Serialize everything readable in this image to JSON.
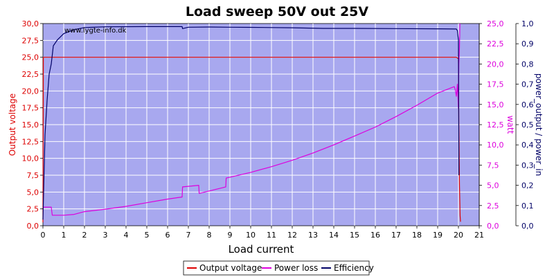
{
  "chart_data": {
    "type": "line",
    "title": "Load sweep 50V out 25V",
    "watermark": "www.lygte-info.dk",
    "xlabel": "Load current",
    "xlim": [
      0,
      21
    ],
    "x_ticks": [
      "0",
      "1",
      "2",
      "3",
      "4",
      "5",
      "6",
      "7",
      "8",
      "9",
      "10",
      "11",
      "12",
      "13",
      "14",
      "15",
      "16",
      "17",
      "18",
      "19",
      "20",
      "21"
    ],
    "y_left": {
      "label": "Output voltage",
      "range": [
        0,
        30
      ],
      "ticks": [
        "0,0",
        "2,5",
        "5,0",
        "7,5",
        "10,0",
        "12,5",
        "15,0",
        "17,5",
        "20,0",
        "22,5",
        "25,0",
        "27,5",
        "30,0"
      ],
      "color": "#dd0000"
    },
    "y_right1": {
      "label": "watt",
      "range": [
        0,
        25
      ],
      "ticks": [
        "0,0",
        "2,5",
        "5,0",
        "7,5",
        "10,0",
        "12,5",
        "15,0",
        "17,5",
        "20,0",
        "22,5",
        "25,0"
      ],
      "color": "#dd00dd"
    },
    "y_right2": {
      "label": "power_output / power_in",
      "range": [
        0,
        1
      ],
      "ticks": [
        "0,0",
        "0,1",
        "0,2",
        "0,3",
        "0,4",
        "0,5",
        "0,6",
        "0,7",
        "0,8",
        "0,9",
        "1,0"
      ],
      "color": "#000066"
    },
    "grid": true,
    "legend_position": "bottom",
    "plot_background": "#a8a8ef",
    "series": [
      {
        "name": "Output voltage",
        "axis": "left",
        "color": "#dd0000",
        "x": [
          0,
          0.02,
          1,
          5,
          10,
          15,
          19.9,
          20.0,
          20.02,
          20.05,
          20.08,
          20.1
        ],
        "y": [
          0.5,
          25.0,
          25.0,
          25.0,
          25.0,
          25.0,
          25.0,
          24.8,
          15.0,
          6.0,
          1.5,
          0.6
        ]
      },
      {
        "name": "Power loss",
        "axis": "right1",
        "color": "#dd00dd",
        "x": [
          0,
          0.05,
          0.4,
          0.45,
          1.0,
          1.5,
          2.0,
          3.0,
          4.0,
          5.0,
          6.0,
          6.7,
          6.72,
          7.5,
          7.52,
          8.0,
          8.8,
          8.82,
          9.0,
          10.0,
          11.0,
          12.0,
          13.0,
          14.0,
          15.0,
          16.0,
          17.0,
          18.0,
          19.0,
          19.8,
          19.85,
          19.9,
          19.95,
          20.0,
          20.02,
          20.05,
          20.07
        ],
        "y": [
          2.3,
          2.3,
          2.3,
          1.3,
          1.3,
          1.4,
          1.75,
          2.05,
          2.4,
          2.85,
          3.3,
          3.55,
          4.8,
          5.0,
          4.0,
          4.3,
          4.8,
          5.9,
          6.0,
          6.6,
          7.3,
          8.1,
          9.0,
          10.0,
          11.1,
          12.2,
          13.5,
          14.9,
          16.4,
          17.2,
          16.8,
          16.0,
          17.5,
          14.5,
          20.0,
          22.0,
          25.0
        ]
      },
      {
        "name": "Efficiency",
        "axis": "right2",
        "color": "#000066",
        "x": [
          0,
          0.1,
          0.2,
          0.3,
          0.4,
          0.5,
          0.7,
          1.0,
          1.5,
          2.0,
          3.0,
          5.0,
          6.7,
          6.72,
          7.0,
          8.0,
          9.0,
          10.0,
          12.0,
          13.5,
          15.0,
          17.0,
          19.0,
          19.9,
          19.95,
          20.0,
          20.02
        ],
        "y": [
          0.03,
          0.45,
          0.62,
          0.75,
          0.8,
          0.89,
          0.92,
          0.95,
          0.97,
          0.98,
          0.984,
          0.985,
          0.985,
          0.975,
          0.982,
          0.983,
          0.982,
          0.981,
          0.979,
          0.976,
          0.976,
          0.975,
          0.974,
          0.973,
          0.965,
          0.92,
          0.25
        ]
      }
    ]
  }
}
